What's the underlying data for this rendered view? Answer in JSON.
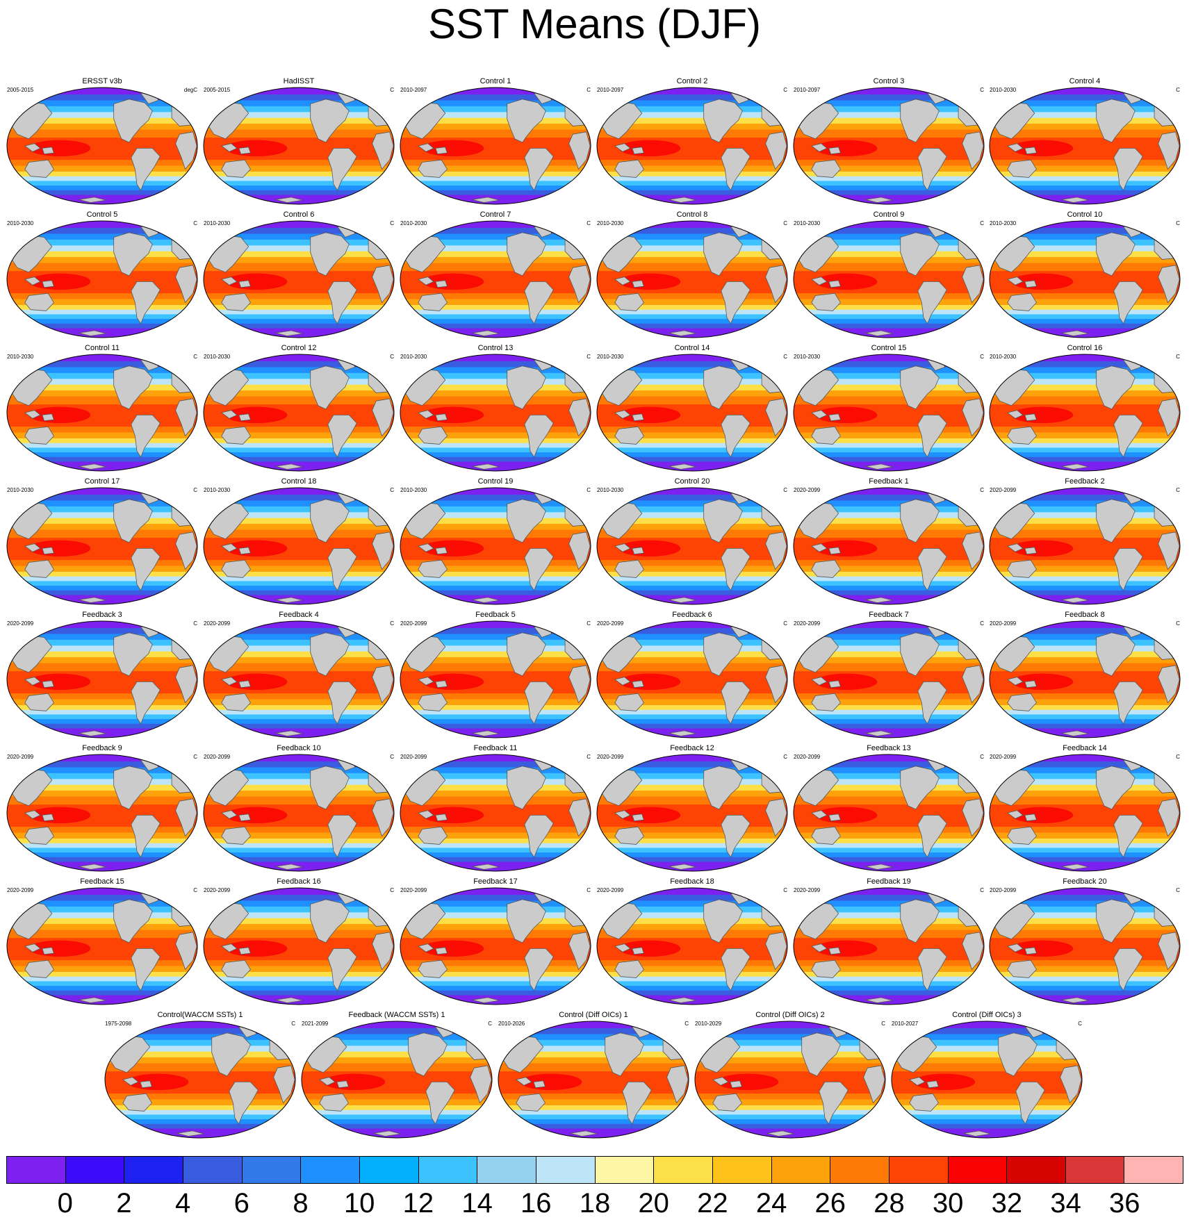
{
  "title": "SST Means (DJF)",
  "panels": [
    {
      "title": "ERSST v3b",
      "period": "2005-2015",
      "units": "degC"
    },
    {
      "title": "HadISST",
      "period": "2005-2015",
      "units": "C"
    },
    {
      "title": "Control 1",
      "period": "2010-2097",
      "units": "C"
    },
    {
      "title": "Control 2",
      "period": "2010-2097",
      "units": "C"
    },
    {
      "title": "Control 3",
      "period": "2010-2097",
      "units": "C"
    },
    {
      "title": "Control 4",
      "period": "2010-2030",
      "units": "C"
    },
    {
      "title": "Control 5",
      "period": "2010-2030",
      "units": "C"
    },
    {
      "title": "Control 6",
      "period": "2010-2030",
      "units": "C"
    },
    {
      "title": "Control 7",
      "period": "2010-2030",
      "units": "C"
    },
    {
      "title": "Control 8",
      "period": "2010-2030",
      "units": "C"
    },
    {
      "title": "Control 9",
      "period": "2010-2030",
      "units": "C"
    },
    {
      "title": "Control 10",
      "period": "2010-2030",
      "units": "C"
    },
    {
      "title": "Control 11",
      "period": "2010-2030",
      "units": "C"
    },
    {
      "title": "Control 12",
      "period": "2010-2030",
      "units": "C"
    },
    {
      "title": "Control 13",
      "period": "2010-2030",
      "units": "C"
    },
    {
      "title": "Control 14",
      "period": "2010-2030",
      "units": "C"
    },
    {
      "title": "Control 15",
      "period": "2010-2030",
      "units": "C"
    },
    {
      "title": "Control 16",
      "period": "2010-2030",
      "units": "C"
    },
    {
      "title": "Control 17",
      "period": "2010-2030",
      "units": "C"
    },
    {
      "title": "Control 18",
      "period": "2010-2030",
      "units": "C"
    },
    {
      "title": "Control 19",
      "period": "2010-2030",
      "units": "C"
    },
    {
      "title": "Control 20",
      "period": "2010-2030",
      "units": "C"
    },
    {
      "title": "Feedback 1",
      "period": "2020-2099",
      "units": "C"
    },
    {
      "title": "Feedback 2",
      "period": "2020-2099",
      "units": "C"
    },
    {
      "title": "Feedback 3",
      "period": "2020-2099",
      "units": "C"
    },
    {
      "title": "Feedback 4",
      "period": "2020-2099",
      "units": "C"
    },
    {
      "title": "Feedback 5",
      "period": "2020-2099",
      "units": "C"
    },
    {
      "title": "Feedback 6",
      "period": "2020-2099",
      "units": "C"
    },
    {
      "title": "Feedback 7",
      "period": "2020-2099",
      "units": "C"
    },
    {
      "title": "Feedback 8",
      "period": "2020-2099",
      "units": "C"
    },
    {
      "title": "Feedback 9",
      "period": "2020-2099",
      "units": "C"
    },
    {
      "title": "Feedback 10",
      "period": "2020-2099",
      "units": "C"
    },
    {
      "title": "Feedback 11",
      "period": "2020-2099",
      "units": "C"
    },
    {
      "title": "Feedback 12",
      "period": "2020-2099",
      "units": "C"
    },
    {
      "title": "Feedback 13",
      "period": "2020-2099",
      "units": "C"
    },
    {
      "title": "Feedback 14",
      "period": "2020-2099",
      "units": "C"
    },
    {
      "title": "Feedback 15",
      "period": "2020-2099",
      "units": "C"
    },
    {
      "title": "Feedback 16",
      "period": "2020-2099",
      "units": "C"
    },
    {
      "title": "Feedback 17",
      "period": "2020-2099",
      "units": "C"
    },
    {
      "title": "Feedback 18",
      "period": "2020-2099",
      "units": "C"
    },
    {
      "title": "Feedback 19",
      "period": "2020-2099",
      "units": "C"
    },
    {
      "title": "Feedback 20",
      "period": "2020-2099",
      "units": "C"
    },
    {
      "title": "Control(WACCM SSTs) 1",
      "period": "1975-2098",
      "units": "C"
    },
    {
      "title": "Feedback (WACCM SSTs) 1",
      "period": "2021-2099",
      "units": "C"
    },
    {
      "title": "Control (Diff OICs) 1",
      "period": "2010-2026",
      "units": "C"
    },
    {
      "title": "Control (Diff OICs) 2",
      "period": "2010-2029",
      "units": "C"
    },
    {
      "title": "Control (Diff OICs) 3",
      "period": "2010-2027",
      "units": "C"
    }
  ],
  "colorbar": {
    "labels": [
      "0",
      "2",
      "4",
      "6",
      "8",
      "10",
      "12",
      "14",
      "16",
      "18",
      "20",
      "22",
      "24",
      "26",
      "28",
      "30",
      "32",
      "34",
      "36"
    ],
    "colors": [
      "#7d21f0",
      "#3d0cfa",
      "#1e22f0",
      "#3a5de0",
      "#3179e8",
      "#1f90ff",
      "#02b0ff",
      "#3cc3ff",
      "#94d3f0",
      "#bde4f7",
      "#fdf6a4",
      "#fde047",
      "#fec21a",
      "#fea20b",
      "#fe7a04",
      "#fe4404",
      "#fa0202",
      "#d70404",
      "#da3838",
      "#ffb4b4"
    ]
  },
  "land_color": "#cbcbcb"
}
